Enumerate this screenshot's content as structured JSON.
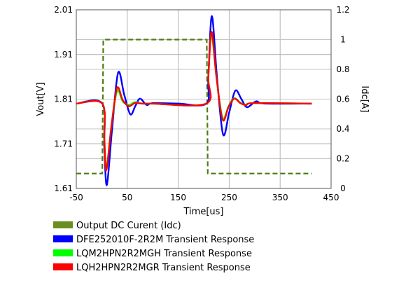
{
  "chart_data": {
    "type": "line",
    "xlabel": "Time[us]",
    "ylabel": "Vout[V]",
    "y2label": "Idc[A]",
    "xlim": [
      -50,
      450
    ],
    "ylim": [
      1.61,
      2.01
    ],
    "y2lim": [
      0,
      1.2
    ],
    "xticks": [
      "-50",
      "50",
      "150",
      "250",
      "350",
      "450"
    ],
    "yticks": [
      "1.61",
      "1.71",
      "1.81",
      "1.91",
      "2.01"
    ],
    "y2ticks": [
      "0",
      "0.2",
      "0.4",
      "0.6",
      "0.8",
      "1",
      "1.2"
    ],
    "grid": true,
    "legend_placement": "bottom",
    "series": [
      {
        "name": "Output DC Curent (Idc)",
        "axis": "right",
        "color": "#4f7d12",
        "swatch": "#6b8e23",
        "dashed": true,
        "step": true,
        "x": [
          -50,
          1,
          3,
          206,
          208,
          412
        ],
        "y": [
          0.1,
          0.1,
          1.0,
          1.0,
          0.1,
          0.1
        ]
      },
      {
        "name": "DFE252010F-2R2M Transient Response",
        "axis": "left",
        "color": "#0000ff",
        "x": [
          -50,
          1,
          5,
          10,
          20,
          32,
          44,
          56,
          66,
          75,
          88,
          100,
          150,
          205,
          209,
          216,
          226,
          238,
          250,
          262,
          274,
          285,
          303,
          320,
          412
        ],
        "y": [
          1.8,
          1.8,
          1.7,
          1.618,
          1.74,
          1.869,
          1.82,
          1.776,
          1.795,
          1.811,
          1.797,
          1.801,
          1.8,
          1.8,
          1.86,
          1.996,
          1.86,
          1.731,
          1.78,
          1.829,
          1.81,
          1.792,
          1.805,
          1.8,
          1.8
        ]
      },
      {
        "name": "LQM2HPN2R2MGH Transient Response",
        "axis": "left",
        "color": "#00ff00",
        "x": [
          -50,
          1,
          5,
          9,
          19,
          30,
          41,
          53,
          65,
          80,
          100,
          205,
          209,
          215,
          225,
          237,
          249,
          260,
          272,
          283,
          300,
          412
        ],
        "y": [
          1.8,
          1.8,
          1.72,
          1.655,
          1.75,
          1.828,
          1.805,
          1.797,
          1.803,
          1.8,
          1.8,
          1.8,
          1.86,
          1.955,
          1.86,
          1.768,
          1.795,
          1.812,
          1.802,
          1.797,
          1.801,
          1.8
        ]
      },
      {
        "name": "LQH2HPN2R2MGR Transient Response",
        "axis": "left",
        "color": "#ff0000",
        "x": [
          -50,
          1,
          5,
          9,
          19,
          30,
          41,
          53,
          65,
          80,
          100,
          205,
          209,
          215.5,
          225,
          237,
          249,
          260,
          272,
          283,
          300,
          412
        ],
        "y": [
          1.8,
          1.8,
          1.72,
          1.651,
          1.75,
          1.835,
          1.808,
          1.794,
          1.801,
          1.8,
          1.8,
          1.8,
          1.86,
          1.961,
          1.86,
          1.764,
          1.793,
          1.811,
          1.801,
          1.797,
          1.801,
          1.8
        ]
      }
    ]
  }
}
